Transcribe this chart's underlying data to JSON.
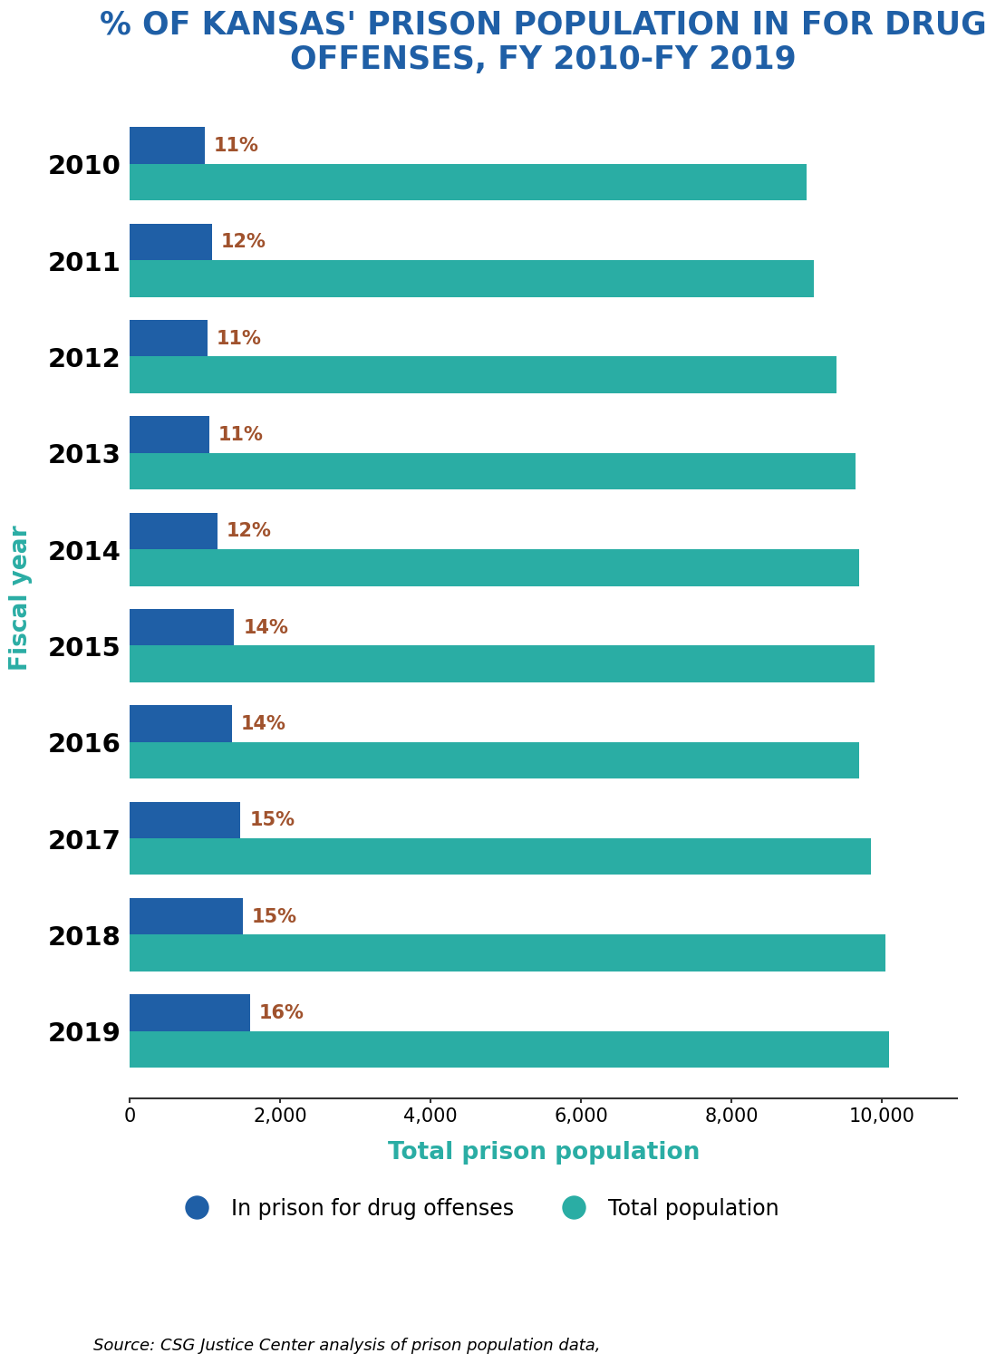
{
  "title": "% OF KANSAS' PRISON POPULATION IN FOR DRUG\nOFFENSES, FY 2010-FY 2019",
  "title_color": "#1F5FA6",
  "years": [
    "2010",
    "2011",
    "2012",
    "2013",
    "2014",
    "2015",
    "2016",
    "2017",
    "2018",
    "2019"
  ],
  "drug_values": [
    990,
    1092,
    1034,
    1056,
    1164,
    1386,
    1358,
    1470,
    1500,
    1600
  ],
  "total_values": [
    9000,
    9100,
    9400,
    9650,
    9700,
    9900,
    9700,
    9850,
    10050,
    10100
  ],
  "drug_pct_labels": [
    "11%",
    "12%",
    "11%",
    "11%",
    "12%",
    "14%",
    "14%",
    "15%",
    "15%",
    "16%"
  ],
  "drug_color": "#1F5FA6",
  "total_color": "#2AADA4",
  "label_color": "#A0522D",
  "xlabel": "Total prison population",
  "xlabel_color": "#2AADA4",
  "ylabel": "Fiscal year",
  "ylabel_color": "#2AADA4",
  "xlim_max": 11000,
  "xticks": [
    0,
    2000,
    4000,
    6000,
    8000,
    10000
  ],
  "xtick_labels": [
    "0",
    "2,000",
    "4,000",
    "6,000",
    "8,000",
    "10,000"
  ],
  "legend_drug_label": "In prison for drug offenses",
  "legend_total_label": "Total population",
  "source_text": "Source: CSG Justice Center analysis of prison population data,",
  "background_color": "#ffffff",
  "title_fontsize": 25,
  "axis_label_fontsize": 19,
  "tick_fontsize": 15,
  "bar_label_fontsize": 15,
  "year_label_fontsize": 21,
  "legend_fontsize": 17,
  "source_fontsize": 13
}
